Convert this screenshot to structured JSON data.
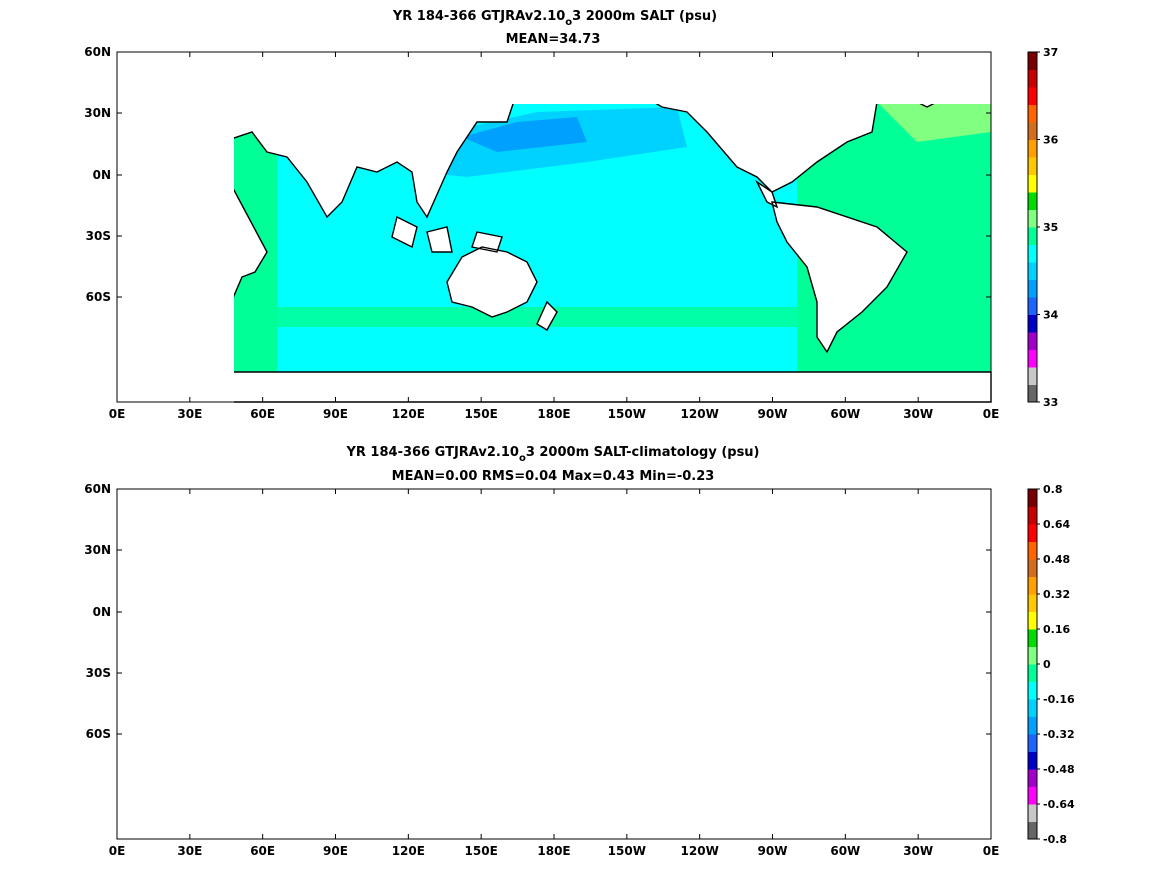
{
  "colors": {
    "cb_top": [
      "#666666",
      "#c8c8c8",
      "#ff00ff",
      "#a000c8",
      "#0000c8",
      "#1e64ff",
      "#00a0ff",
      "#00d2ff",
      "#00ffff",
      "#00ff96",
      "#80ff80",
      "#00dc00",
      "#ffff00",
      "#ffc800",
      "#ffa000",
      "#d26e1e",
      "#ff6400",
      "#ff0000",
      "#c80000",
      "#780000"
    ],
    "cb_bot": [
      "#666666",
      "#c8c8c8",
      "#ff00ff",
      "#a000c8",
      "#0000c8",
      "#1e64ff",
      "#00a0ff",
      "#00d2ff",
      "#00ffff",
      "#00ff96",
      "#80ff80",
      "#00dc00",
      "#ffff00",
      "#ffc800",
      "#ffa000",
      "#d26e1e",
      "#ff6400",
      "#ff0000",
      "#c80000",
      "#780000"
    ]
  },
  "x_ticks": [
    "0E",
    "30E",
    "60E",
    "90E",
    "120E",
    "150E",
    "180E",
    "150W",
    "120W",
    "90W",
    "60W",
    "30W",
    "0E"
  ],
  "y_ticks": [
    "60N",
    "30N",
    "0N",
    "30S",
    "60S"
  ],
  "top_map": {
    "title_prefix": "YR 184-366 GTJRAv2.10",
    "title_sub": "o",
    "title_suffix": "3 2000m SALT (psu)",
    "subtitle": "MEAN=34.73",
    "colorbar_labels": [
      "37",
      "36",
      "35",
      "34",
      "33"
    ],
    "colorbar_values": [
      37,
      36,
      35,
      34,
      33
    ]
  },
  "bottom_map": {
    "title_prefix": "YR 184-366 GTJRAv2.10",
    "title_sub": "o",
    "title_suffix": "3 2000m SALT-climatology (psu)",
    "subtitle": "MEAN=0.00   RMS=0.04   Max=0.43   Min=-0.23",
    "colorbar_labels": [
      "0.8",
      "0.64",
      "0.48",
      "0.32",
      "0.16",
      "0",
      "-0.16",
      "-0.32",
      "-0.48",
      "-0.64",
      "-0.8"
    ],
    "colorbar_values": [
      0.8,
      0.64,
      0.48,
      0.32,
      0.16,
      0,
      -0.16,
      -0.32,
      -0.48,
      -0.64,
      -0.8
    ]
  }
}
